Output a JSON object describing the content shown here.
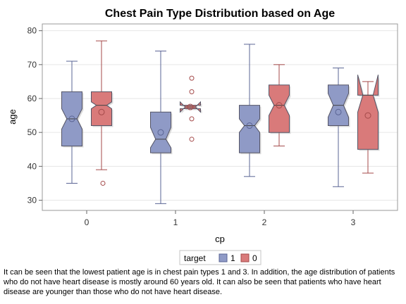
{
  "chart_data": {
    "type": "box",
    "title": "Chest Pain Type Distribution based on Age",
    "xlabel": "cp",
    "ylabel": "age",
    "categories": [
      "0",
      "1",
      "2",
      "3"
    ],
    "ylim": [
      27,
      82
    ],
    "yticks": [
      30,
      40,
      50,
      60,
      70,
      80
    ],
    "grid": true,
    "legend": {
      "title": "target",
      "position": "bottom-center"
    },
    "series": [
      {
        "name": "1",
        "color": "#8f9ac6",
        "stroke": "#5a6494",
        "boxes": [
          {
            "category": "0",
            "min": 35,
            "q1": 46,
            "median": 54,
            "q3": 62,
            "max": 71,
            "mean": 54,
            "notch_low": 51,
            "notch_high": 57,
            "outliers": []
          },
          {
            "category": "1",
            "min": 29,
            "q1": 44,
            "median": 48,
            "q3": 56,
            "max": 74,
            "mean": 50,
            "notch_low": 45.5,
            "notch_high": 51.5,
            "outliers": []
          },
          {
            "category": "2",
            "min": 37,
            "q1": 44,
            "median": 52,
            "q3": 58,
            "max": 76,
            "mean": 52,
            "notch_low": 50,
            "notch_high": 54,
            "outliers": []
          },
          {
            "category": "3",
            "min": 34,
            "q1": 52,
            "median": 58,
            "q3": 64,
            "max": 69,
            "mean": 56,
            "notch_low": 54.5,
            "notch_high": 61.5,
            "outliers": []
          }
        ]
      },
      {
        "name": "0",
        "color": "#d97a7a",
        "stroke": "#a44a4a",
        "boxes": [
          {
            "category": "0",
            "min": 39,
            "q1": 52,
            "median": 58,
            "q3": 62,
            "max": 77,
            "mean": 56,
            "notch_low": 57,
            "notch_high": 59,
            "outliers": [
              35
            ]
          },
          {
            "category": "1",
            "min": 57,
            "q1": 57,
            "median": 57.5,
            "q3": 58,
            "max": 58,
            "mean": 57.5,
            "notch_low": 56,
            "notch_high": 59,
            "outliers": [
              48,
              54,
              62,
              66
            ]
          },
          {
            "category": "2",
            "min": 46,
            "q1": 50,
            "median": 58,
            "q3": 64,
            "max": 70,
            "mean": 58,
            "notch_low": 55,
            "notch_high": 61,
            "outliers": []
          },
          {
            "category": "3",
            "min": 38,
            "q1": 45,
            "median": 61,
            "q3": 61,
            "max": 65,
            "mean": 55,
            "notch_low": 56,
            "notch_high": 67,
            "outliers": []
          }
        ]
      }
    ]
  },
  "caption": "It can be seen that the lowest patient age is in chest pain types 1 and 3. In addition, the age distribution of patients who do not have heart disease is mostly around 60 years old. It can also be seen that patients who have heart disease are younger than those who do not have heart disease."
}
